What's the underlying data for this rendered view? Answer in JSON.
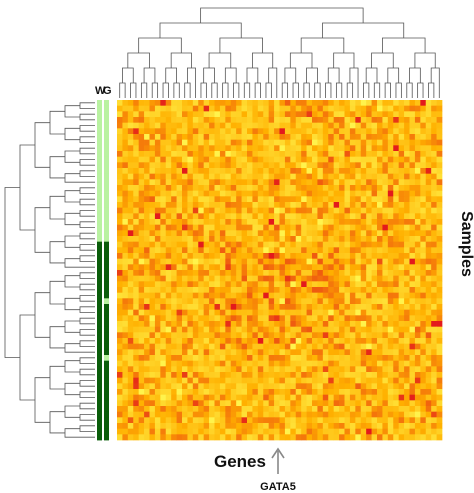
{
  "chart_data": {
    "type": "heatmap",
    "title": "",
    "xlabel": "Genes",
    "ylabel": "Samples",
    "column_header_labels": [
      "W",
      "G"
    ],
    "annotation_marker": "GATA5",
    "grid": false,
    "legend": "none",
    "n_columns": 60,
    "n_rows": 60,
    "colors": {
      "low": "#ffff66",
      "mid": "#ffb000",
      "high": "#e31a1c",
      "bar_light": "#b9f2a1",
      "bar_dark": "#0b5d0b",
      "tree": "#555555",
      "arrow": "#888888"
    },
    "W_bar": [
      1,
      1,
      1,
      1,
      1,
      1,
      1,
      1,
      1,
      1,
      1,
      1,
      1,
      1,
      1,
      1,
      1,
      1,
      1,
      1,
      1,
      1,
      1,
      1,
      1,
      0,
      0,
      0,
      0,
      0,
      0,
      0,
      0,
      0,
      0,
      0,
      0,
      0,
      0,
      0,
      0,
      0,
      0,
      0,
      0,
      0,
      0,
      0,
      0,
      0,
      0,
      0,
      0,
      0,
      0,
      0,
      0,
      0,
      0,
      0
    ],
    "G_bar": [
      1,
      1,
      1,
      1,
      1,
      1,
      1,
      1,
      1,
      1,
      1,
      1,
      1,
      1,
      1,
      1,
      1,
      1,
      1,
      1,
      1,
      1,
      1,
      1,
      1,
      0,
      0,
      0,
      0,
      0,
      0,
      0,
      0,
      0,
      0,
      1,
      0,
      0,
      0,
      0,
      0,
      0,
      0,
      0,
      0,
      1,
      0,
      0,
      0,
      0,
      0,
      0,
      0,
      0,
      0,
      0,
      0,
      0,
      0,
      0
    ]
  }
}
